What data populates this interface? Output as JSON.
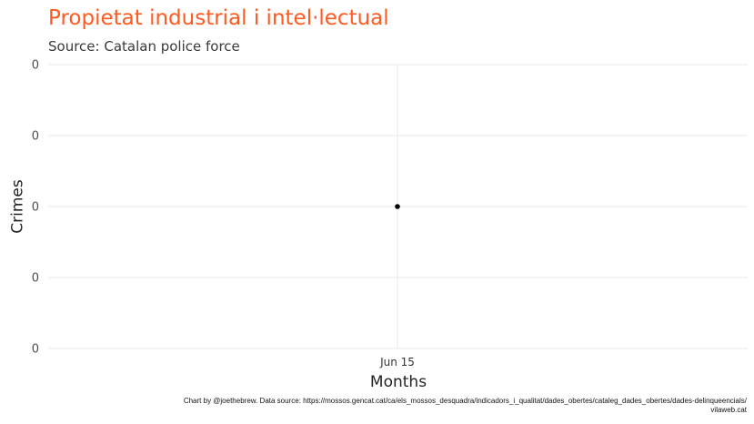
{
  "chart_data": {
    "type": "scatter",
    "title": "Propietat industrial i intel·lectual",
    "subtitle": "Source: Catalan police force",
    "xlabel": "Months",
    "ylabel": "Crimes",
    "x_ticks": [
      "Jun 15"
    ],
    "y_ticks": [
      "0",
      "0",
      "0",
      "0",
      "0"
    ],
    "points": [
      {
        "x": "Jun 15",
        "y": 0
      }
    ],
    "grid": true,
    "colors": {
      "title": "#ff5a1f",
      "point": "#000000",
      "grid": "#e8e8e8"
    }
  },
  "caption": {
    "line1": "Chart by @joethebrew. Data source: https://mossos.gencat.cat/ca/els_mossos_desquadra/indicadors_i_qualitat/dades_obertes/cataleg_dades_obertes/dades-delinqueencials/",
    "line2": "vilaweb.cat"
  }
}
